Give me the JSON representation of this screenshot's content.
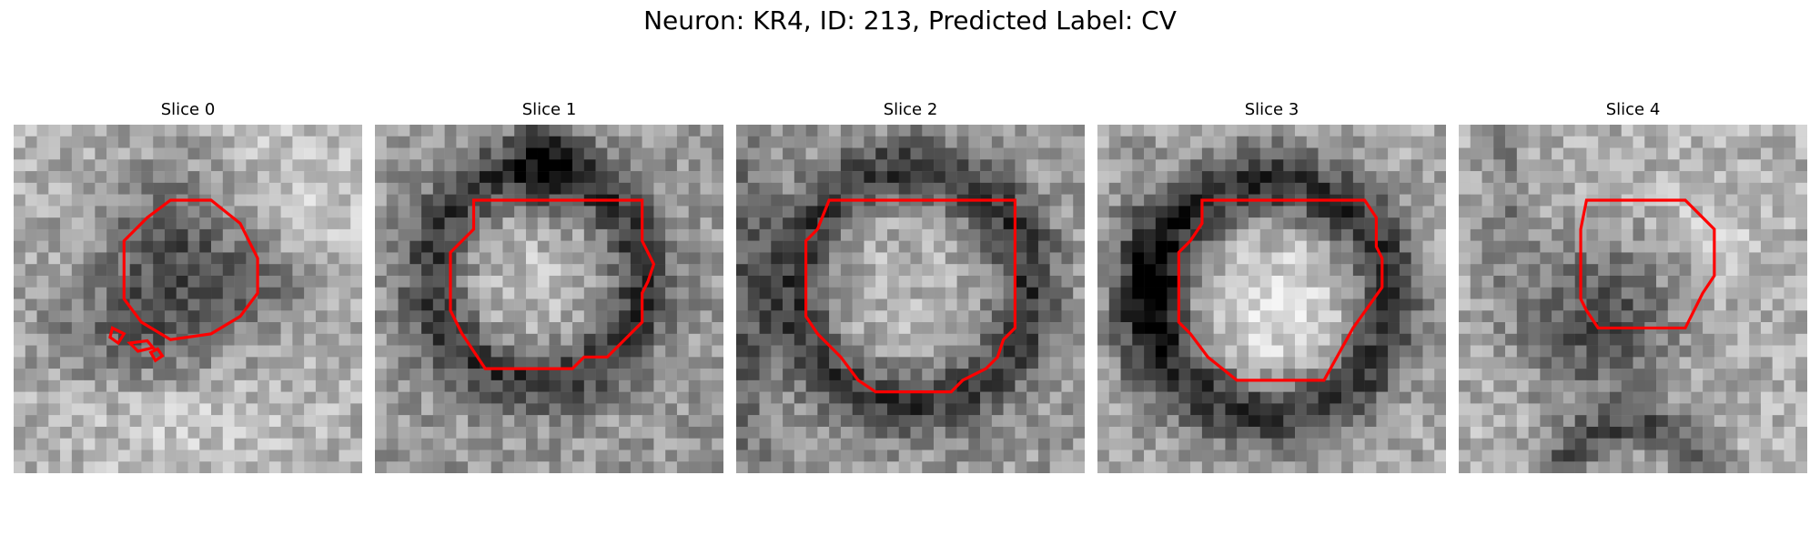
{
  "figure": {
    "title": "Neuron: KR4, ID: 213, Predicted Label: CV",
    "contour_color": "#ff0000"
  },
  "panels": [
    {
      "label": "Slice 0",
      "variant": "dark-blob"
    },
    {
      "label": "Slice 1",
      "variant": "ring"
    },
    {
      "label": "Slice 2",
      "variant": "ring-large"
    },
    {
      "label": "Slice 3",
      "variant": "ring-bright"
    },
    {
      "label": "Slice 4",
      "variant": "dark-blob-bottom-arc"
    }
  ]
}
